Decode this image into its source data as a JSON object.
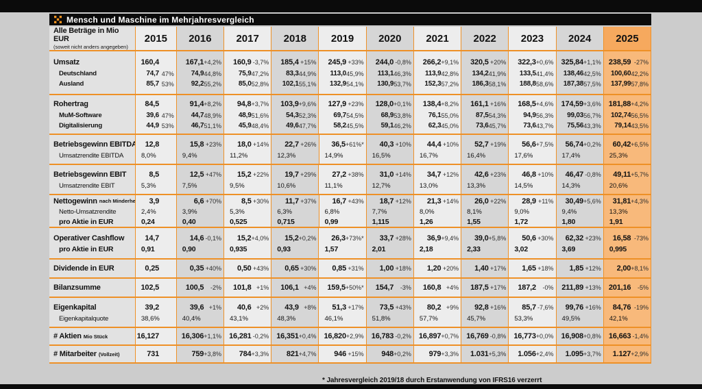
{
  "page": {
    "title": "Mensch und Maschine im Mehrjahresvergleich",
    "footnote": "* Jahresvergleich 2019/18 durch Erstanwendung von IFRS16 verzerrt"
  },
  "colors": {
    "accent_orange": "#ee9026",
    "logo_orange": "#f6921e",
    "highlight_column": "#f8b97b",
    "highlight_header": "#f6a95e",
    "column_light": "#ededed",
    "column_dark": "#d6d6d6",
    "label_column": "#e2e2e2",
    "bar_black": "#0b0b0b",
    "page_background": "#cccccc"
  },
  "chart_data": {
    "type": "table",
    "title": "Mensch und Maschine im Mehrjahresvergleich",
    "unit_label": "Alle Beträge in Mio EUR",
    "unit_sublabel": "(soweit nicht anders angegeben)",
    "years": [
      "2015",
      "2016",
      "2017",
      "2018",
      "2019",
      "2020",
      "2021",
      "2022",
      "2023",
      "2024",
      "2025"
    ],
    "highlight_year": "2025",
    "groups": [
      {
        "rows": [
          {
            "label": "Umsatz",
            "suffix": "",
            "style": "main",
            "cells": [
              [
                "160,4",
                ""
              ],
              [
                "167,1",
                "+4,2%"
              ],
              [
                "160,9",
                "-3,7%"
              ],
              [
                "185,4",
                "+15%"
              ],
              [
                "245,9",
                "+33%"
              ],
              [
                "244,0",
                "-0,8%"
              ],
              [
                "266,2",
                "+9,1%"
              ],
              [
                "320,5",
                "+20%"
              ],
              [
                "322,3",
                "+0,6%"
              ],
              [
                "325,84",
                "+1,1%"
              ],
              [
                "238,59",
                "-27%"
              ]
            ]
          },
          {
            "label": "Deutschland",
            "suffix": "",
            "style": "sub",
            "cells": [
              [
                "74,7",
                "47%"
              ],
              [
                "74,9",
                "44,8%"
              ],
              [
                "75,9",
                "47,2%"
              ],
              [
                "83,3",
                "44,9%"
              ],
              [
                "113,0",
                "45,9%"
              ],
              [
                "113,1",
                "46,3%"
              ],
              [
                "113,9",
                "42,8%"
              ],
              [
                "134,2",
                "41,9%"
              ],
              [
                "133,5",
                "41,4%"
              ],
              [
                "138,46",
                "42,5%"
              ],
              [
                "100,60",
                "42,2%"
              ]
            ]
          },
          {
            "label": "Ausland",
            "suffix": "",
            "style": "sub",
            "cells": [
              [
                "85,7",
                "53%"
              ],
              [
                "92,2",
                "55,2%"
              ],
              [
                "85,0",
                "52,8%"
              ],
              [
                "102,1",
                "55,1%"
              ],
              [
                "132,9",
                "54,1%"
              ],
              [
                "130,9",
                "53,7%"
              ],
              [
                "152,3",
                "57,2%"
              ],
              [
                "186,3",
                "58,1%"
              ],
              [
                "188,8",
                "58,6%"
              ],
              [
                "187,38",
                "57,5%"
              ],
              [
                "137,99",
                "57,8%"
              ]
            ]
          }
        ]
      },
      {
        "rows": [
          {
            "label": "Rohertrag",
            "suffix": "",
            "style": "main",
            "cells": [
              [
                "84,5",
                ""
              ],
              [
                "91,4",
                "+8,2%"
              ],
              [
                "94,8",
                "+3,7%"
              ],
              [
                "103,9",
                "+9,6%"
              ],
              [
                "127,9",
                "+23%"
              ],
              [
                "128,0",
                "+0,1%"
              ],
              [
                "138,4",
                "+8,2%"
              ],
              [
                "161,1",
                "+16%"
              ],
              [
                "168,5",
                "+4,6%"
              ],
              [
                "174,59",
                "+3,6%"
              ],
              [
                "181,88",
                "+4,2%"
              ]
            ]
          },
          {
            "label": "MuM-Software",
            "suffix": "",
            "style": "sub",
            "cells": [
              [
                "39,6",
                "47%"
              ],
              [
                "44,7",
                "48,9%"
              ],
              [
                "48,9",
                "51,6%"
              ],
              [
                "54,3",
                "52,3%"
              ],
              [
                "69,7",
                "54,5%"
              ],
              [
                "68,9",
                "53,8%"
              ],
              [
                "76,1",
                "55,0%"
              ],
              [
                "87,5",
                "54,3%"
              ],
              [
                "94,9",
                "56,3%"
              ],
              [
                "99,03",
                "56,7%"
              ],
              [
                "102,74",
                "56,5%"
              ]
            ]
          },
          {
            "label": "Digitalisierung",
            "suffix": "",
            "style": "sub",
            "cells": [
              [
                "44,9",
                "53%"
              ],
              [
                "46,7",
                "51,1%"
              ],
              [
                "45,9",
                "48,4%"
              ],
              [
                "49,6",
                "47,7%"
              ],
              [
                "58,2",
                "45,5%"
              ],
              [
                "59,1",
                "46,2%"
              ],
              [
                "62,3",
                "45,0%"
              ],
              [
                "73,6",
                "45,7%"
              ],
              [
                "73,6",
                "43,7%"
              ],
              [
                "75,56",
                "43,3%"
              ],
              [
                "79,14",
                "43,5%"
              ]
            ]
          }
        ]
      },
      {
        "rows": [
          {
            "label": "Betriebsgewinn EBITDA",
            "suffix": "",
            "style": "main",
            "cells": [
              [
                "12,8",
                ""
              ],
              [
                "15,8",
                "+23%"
              ],
              [
                "18,0",
                "+14%"
              ],
              [
                "22,7",
                "+26%"
              ],
              [
                "36,5",
                "+61%*"
              ],
              [
                "40,3",
                "+10%"
              ],
              [
                "44,4",
                "+10%"
              ],
              [
                "52,7",
                "+19%"
              ],
              [
                "56,6",
                "+7,5%"
              ],
              [
                "56,74",
                "+0,2%"
              ],
              [
                "60,42",
                "+6,5%"
              ]
            ]
          },
          {
            "label": "Umsatzrendite EBITDA",
            "suffix": "",
            "style": "rend",
            "cells": [
              "8,0%",
              "9,4%",
              "11,2%",
              "12,3%",
              "14,9%",
              "16,5%",
              "16,7%",
              "16,4%",
              "17,6%",
              "17,4%",
              "25,3%"
            ]
          }
        ]
      },
      {
        "rows": [
          {
            "label": "Betriebsgewinn EBIT",
            "suffix": "",
            "style": "main",
            "cells": [
              [
                "8,5",
                ""
              ],
              [
                "12,5",
                "+47%"
              ],
              [
                "15,2",
                "+22%"
              ],
              [
                "19,7",
                "+29%"
              ],
              [
                "27,2",
                "+38%"
              ],
              [
                "31,0",
                "+14%"
              ],
              [
                "34,7",
                "+12%"
              ],
              [
                "42,6",
                "+23%"
              ],
              [
                "46,8",
                "+10%"
              ],
              [
                "46,47",
                "-0,8%"
              ],
              [
                "49,11",
                "+5,7%"
              ]
            ]
          },
          {
            "label": "Umsatzrendite EBIT",
            "suffix": "",
            "style": "rend",
            "cells": [
              "5,3%",
              "7,5%",
              "9,5%",
              "10,6%",
              "11,1%",
              "12,7%",
              "13,0%",
              "13,3%",
              "14,5%",
              "14,3%",
              "20,6%"
            ]
          }
        ]
      },
      {
        "rows": [
          {
            "label": "Nettogewinn",
            "suffix": "nach Minderheiten",
            "style": "main",
            "cells": [
              [
                "3,9",
                ""
              ],
              [
                "6,6",
                "+70%"
              ],
              [
                "8,5",
                "+30%"
              ],
              [
                "11,7",
                "+37%"
              ],
              [
                "16,7",
                "+43%"
              ],
              [
                "18,7",
                "+12%"
              ],
              [
                "21,3",
                "+14%"
              ],
              [
                "26,0",
                "+22%"
              ],
              [
                "28,9",
                "+11%"
              ],
              [
                "30,49",
                "+5,6%"
              ],
              [
                "31,81",
                "+4,3%"
              ]
            ]
          },
          {
            "label": "Netto-Umsatzrendite",
            "suffix": "",
            "style": "rend",
            "cells": [
              "2,4%",
              "3,9%",
              "5,3%",
              "6,3%",
              "6,8%",
              "7,7%",
              "8,0%",
              "8,1%",
              "9,0%",
              "9,4%",
              "13,3%"
            ]
          },
          {
            "label": "pro Aktie in EUR",
            "suffix": "",
            "style": "eps",
            "cells": [
              "0,24",
              "0,40",
              "0,525",
              "0,715",
              "0,99",
              "1,115",
              "1,26",
              "1,55",
              "1,72",
              "1,80",
              "1,91"
            ]
          }
        ]
      },
      {
        "rows": [
          {
            "label": "Operativer Cashflow",
            "suffix": "",
            "style": "main",
            "cells": [
              [
                "14,7",
                ""
              ],
              [
                "14,6",
                "-0,1%"
              ],
              [
                "15,2",
                "+4,0%"
              ],
              [
                "15,2",
                "+0,2%"
              ],
              [
                "26,3",
                "+73%*"
              ],
              [
                "33,7",
                "+28%"
              ],
              [
                "36,9",
                "+9,4%"
              ],
              [
                "39,0",
                "+5,8%"
              ],
              [
                "50,6",
                "+30%"
              ],
              [
                "62,32",
                "+23%"
              ],
              [
                "16,58",
                "-73%"
              ]
            ]
          },
          {
            "label": "pro Aktie in EUR",
            "suffix": "",
            "style": "eps",
            "cells": [
              "0,91",
              "0,90",
              "0,935",
              "0,93",
              "1,57",
              "2,01",
              "2,18",
              "2,33",
              "3,02",
              "3,69",
              "0,995"
            ]
          }
        ]
      },
      {
        "rows": [
          {
            "label": "Dividende in EUR",
            "suffix": "",
            "style": "main",
            "cells": [
              [
                "0,25",
                ""
              ],
              [
                "0,35",
                "+40%"
              ],
              [
                "0,50",
                "+43%"
              ],
              [
                "0,65",
                "+30%"
              ],
              [
                "0,85",
                "+31%"
              ],
              [
                "1,00",
                "+18%"
              ],
              [
                "1,20",
                "+20%"
              ],
              [
                "1,40",
                "+17%"
              ],
              [
                "1,65",
                "+18%"
              ],
              [
                "1,85",
                "+12%"
              ],
              [
                "2,00",
                "+8,1%"
              ]
            ]
          }
        ]
      },
      {
        "rows": [
          {
            "label": "Bilanzsumme",
            "suffix": "",
            "style": "main",
            "cells": [
              [
                "102,5",
                ""
              ],
              [
                "100,5",
                "-2%"
              ],
              [
                "101,8",
                "+1%"
              ],
              [
                "106,1",
                "+4%"
              ],
              [
                "159,5",
                "+50%*"
              ],
              [
                "154,7",
                "-3%"
              ],
              [
                "160,8",
                "+4%"
              ],
              [
                "187,5",
                "+17%"
              ],
              [
                "187,2",
                "-0%"
              ],
              [
                "211,89",
                "+13%"
              ],
              [
                "201,16",
                "-5%"
              ]
            ]
          }
        ]
      },
      {
        "rows": [
          {
            "label": "Eigenkapital",
            "suffix": "",
            "style": "main",
            "cells": [
              [
                "39,2",
                ""
              ],
              [
                "39,6",
                "+1%"
              ],
              [
                "40,6",
                "+2%"
              ],
              [
                "43,9",
                "+8%"
              ],
              [
                "51,3",
                "+17%"
              ],
              [
                "73,5",
                "+43%"
              ],
              [
                "80,2",
                "+9%"
              ],
              [
                "92,8",
                "+16%"
              ],
              [
                "85,7",
                "-7,6%"
              ],
              [
                "99,76",
                "+16%"
              ],
              [
                "84,76",
                "-19%"
              ]
            ]
          },
          {
            "label": "Eigenkapitalquote",
            "suffix": "",
            "style": "rend",
            "cells": [
              "38,6%",
              "40,4%",
              "43,1%",
              "48,3%",
              "46,1%",
              "51,8%",
              "57,7%",
              "45,7%",
              "53,3%",
              "49,5%",
              "42,1%"
            ]
          }
        ]
      },
      {
        "rows": [
          {
            "label": "# Aktien",
            "suffix": "Mio Stück",
            "style": "main",
            "cells": [
              [
                "16,127",
                ""
              ],
              [
                "16,306",
                "+1,1%"
              ],
              [
                "16,281",
                "-0,2%"
              ],
              [
                "16,351",
                "+0,4%"
              ],
              [
                "16,820",
                "+2,9%"
              ],
              [
                "16,783",
                "-0,2%"
              ],
              [
                "16,897",
                "+0,7%"
              ],
              [
                "16,769",
                "-0,8%"
              ],
              [
                "16,773",
                "+0,0%"
              ],
              [
                "16,908",
                "+0,8%"
              ],
              [
                "16,663",
                "-1,4%"
              ]
            ]
          }
        ]
      },
      {
        "rows": [
          {
            "label": "# Mitarbeiter",
            "suffix": "(Vollzeit)",
            "style": "main",
            "cells": [
              [
                "731",
                ""
              ],
              [
                "759",
                "+3,8%"
              ],
              [
                "784",
                "+3,3%"
              ],
              [
                "821",
                "+4,7%"
              ],
              [
                "946",
                "+15%"
              ],
              [
                "948",
                "+0,2%"
              ],
              [
                "979",
                "+3,3%"
              ],
              [
                "1.031",
                "+5,3%"
              ],
              [
                "1.056",
                "+2,4%"
              ],
              [
                "1.095",
                "+3,7%"
              ],
              [
                "1.127",
                "+2,9%"
              ]
            ]
          }
        ]
      }
    ]
  }
}
